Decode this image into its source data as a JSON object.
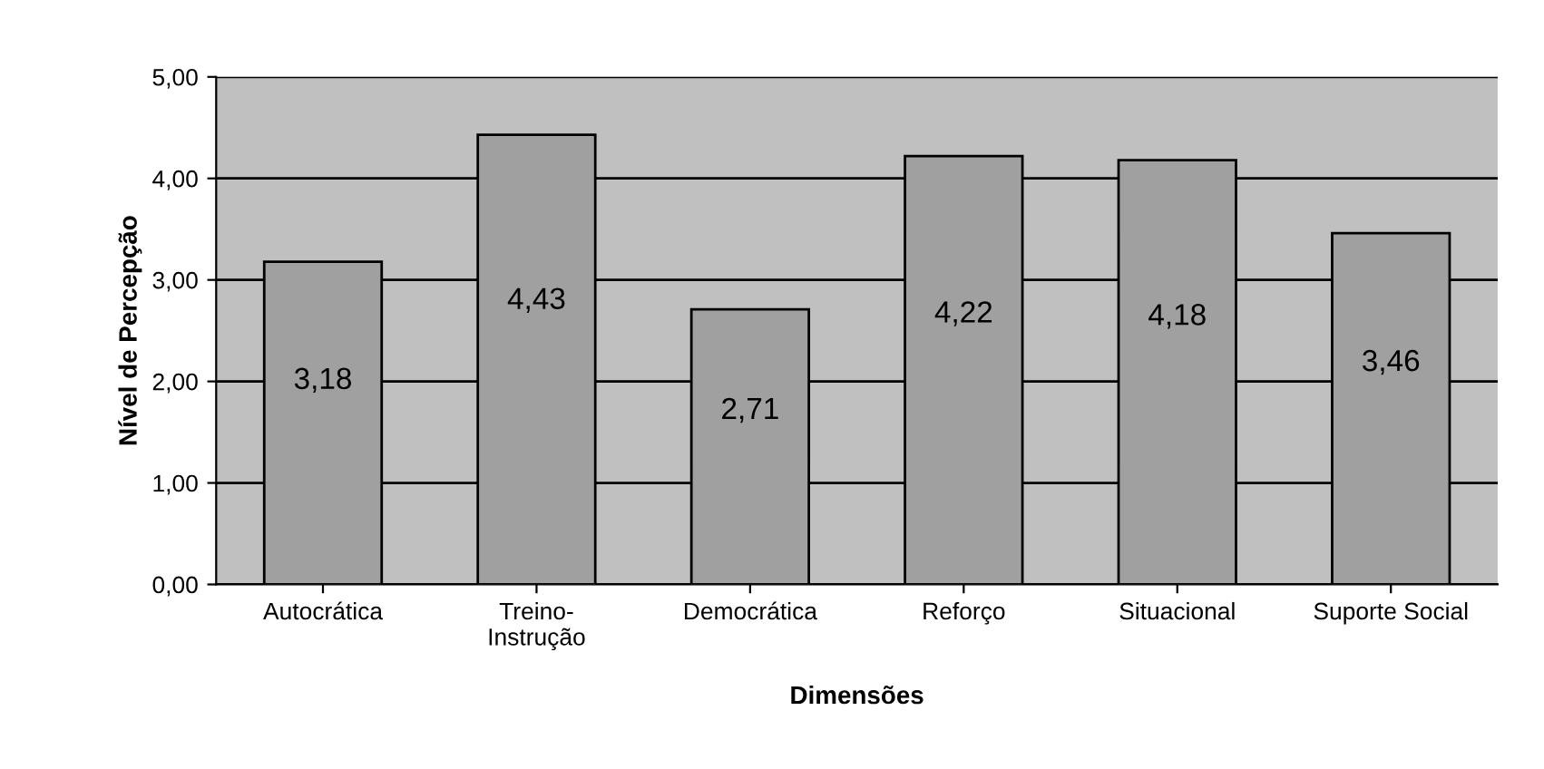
{
  "chart_data": {
    "type": "bar",
    "xlabel": "Dimensões",
    "ylabel": "Nível de Percepção",
    "categories": [
      "Autocrática",
      "Treino-\nInstrução",
      "Democrática",
      "Reforço",
      "Situacional",
      "Suporte Social"
    ],
    "values": [
      3.18,
      4.43,
      2.71,
      4.22,
      4.18,
      3.46
    ],
    "value_labels": [
      "3,18",
      "4,43",
      "2,71",
      "4,22",
      "4,18",
      "3,46"
    ],
    "color": "#a0a0a0",
    "ylim": [
      0,
      5
    ],
    "yticks": [
      {
        "value": 0,
        "label": "0,00"
      },
      {
        "value": 1,
        "label": "1,00"
      },
      {
        "value": 2,
        "label": "2,00"
      },
      {
        "value": 3,
        "label": "3,00"
      },
      {
        "value": 4,
        "label": "4,00"
      },
      {
        "value": 5,
        "label": "5,00"
      }
    ],
    "grid": "y"
  }
}
